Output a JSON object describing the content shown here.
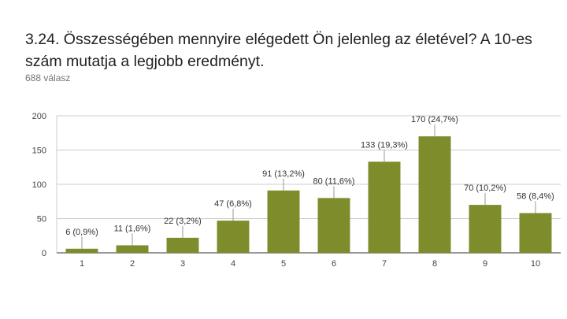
{
  "header": {
    "title": "3.24. Összességében mennyire elégedett Ön jelenleg az életével? A 10-es szám mutatja a legjobb eredményt.",
    "response_count": "688 válasz"
  },
  "colors": {
    "bar": "#7f8c2b",
    "grid": "#cccccc",
    "connector": "#999999"
  },
  "chart_data": {
    "type": "bar",
    "categories": [
      "1",
      "2",
      "3",
      "4",
      "5",
      "6",
      "7",
      "8",
      "9",
      "10"
    ],
    "values": [
      6,
      11,
      22,
      47,
      91,
      80,
      133,
      170,
      70,
      58
    ],
    "data_labels": [
      "6 (0,9%)",
      "11 (1,6%)",
      "22 (3,2%)",
      "47 (6,8%)",
      "91 (13,2%)",
      "80 (11,6%)",
      "133 (19,3%)",
      "170 (24,7%)",
      "70 (10,2%)",
      "58 (8,4%)"
    ],
    "title": "",
    "xlabel": "",
    "ylabel": "",
    "ylim": [
      0,
      200
    ],
    "yticks": [
      0,
      50,
      100,
      150,
      200
    ],
    "grid": true,
    "legend": "none"
  }
}
